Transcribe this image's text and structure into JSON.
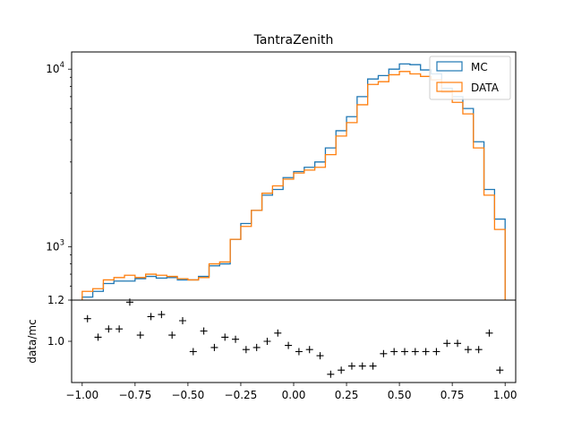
{
  "colors": {
    "mc": "#1f77b4",
    "data": "#ff7f0e",
    "ratio": "#000000"
  },
  "chart_data": [
    {
      "type": "histogram",
      "title": "TantraZenith",
      "scale": "log",
      "ylim": [
        500,
        12500
      ],
      "y_ticks": [
        {
          "value": 1000,
          "label": "10^3",
          "base": "10",
          "exp": "3"
        },
        {
          "value": 10000,
          "label": "10^4",
          "base": "10",
          "exp": "4"
        }
      ],
      "xlim": [
        -1.05,
        1.05
      ],
      "bin_edges": [
        -1.0,
        -0.95,
        -0.9,
        -0.85,
        -0.8,
        -0.75,
        -0.7,
        -0.65,
        -0.6,
        -0.55,
        -0.5,
        -0.45,
        -0.4,
        -0.35,
        -0.3,
        -0.25,
        -0.2,
        -0.15,
        -0.1,
        -0.05,
        0.0,
        0.05,
        0.1,
        0.15,
        0.2,
        0.25,
        0.3,
        0.35,
        0.4,
        0.45,
        0.5,
        0.55,
        0.6,
        0.65,
        0.7,
        0.75,
        0.8,
        0.85,
        0.9,
        0.95,
        1.0
      ],
      "legend": {
        "position": "upper right",
        "entries": [
          "MC",
          "DATA"
        ]
      },
      "series": [
        {
          "name": "MC",
          "values": [
            520,
            560,
            620,
            640,
            640,
            660,
            680,
            665,
            670,
            650,
            650,
            680,
            780,
            800,
            1100,
            1350,
            1600,
            1950,
            2100,
            2450,
            2650,
            2800,
            3000,
            3600,
            4500,
            5400,
            7000,
            8800,
            9200,
            10000,
            10700,
            10600,
            9900,
            9400,
            7800,
            7000,
            6000,
            3900,
            2100,
            1430
          ]
        },
        {
          "name": "DATA",
          "values": [
            560,
            580,
            650,
            670,
            690,
            670,
            700,
            690,
            680,
            660,
            650,
            670,
            800,
            820,
            1100,
            1300,
            1600,
            2000,
            2200,
            2400,
            2600,
            2700,
            2800,
            3300,
            4200,
            5000,
            6300,
            8200,
            8500,
            9300,
            9700,
            9400,
            9100,
            8700,
            7400,
            6500,
            5600,
            3600,
            1950,
            1250
          ]
        }
      ]
    },
    {
      "type": "scatter",
      "ylabel": "data/mc",
      "ylim": [
        0.8,
        1.2
      ],
      "y_ticks": [
        1.0,
        1.2
      ],
      "y_tick_labels": [
        "1.0",
        "1.2"
      ],
      "xlim": [
        -1.05,
        1.05
      ],
      "x_ticks": [
        -1.0,
        -0.75,
        -0.5,
        -0.25,
        0.0,
        0.25,
        0.5,
        0.75,
        1.0
      ],
      "x_tick_labels": [
        "−1.00",
        "−0.75",
        "−0.50",
        "−0.25",
        "0.00",
        "0.25",
        "0.50",
        "0.75",
        "1.00"
      ],
      "marker": "+",
      "series": [
        {
          "x": [
            -0.975,
            -0.925,
            -0.875,
            -0.825,
            -0.775,
            -0.725,
            -0.675,
            -0.625,
            -0.575,
            -0.525,
            -0.475,
            -0.425,
            -0.375,
            -0.325,
            -0.275,
            -0.225,
            -0.175,
            -0.125,
            -0.075,
            -0.025,
            0.025,
            0.075,
            0.125,
            0.175,
            0.225,
            0.275,
            0.325,
            0.375,
            0.425,
            0.475,
            0.525,
            0.575,
            0.625,
            0.675,
            0.725,
            0.775,
            0.825,
            0.875,
            0.925,
            0.975
          ],
          "y": [
            1.11,
            1.02,
            1.06,
            1.06,
            1.19,
            1.03,
            1.12,
            1.13,
            1.03,
            1.1,
            0.95,
            1.05,
            0.97,
            1.02,
            1.01,
            0.96,
            0.97,
            1.0,
            1.04,
            0.98,
            0.95,
            0.96,
            0.93,
            0.84,
            0.86,
            0.88,
            0.88,
            0.88,
            0.94,
            0.95,
            0.95,
            0.95,
            0.95,
            0.95,
            0.99,
            0.99,
            0.96,
            0.96,
            1.04,
            0.86
          ]
        }
      ]
    }
  ]
}
